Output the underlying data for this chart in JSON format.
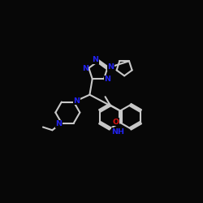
{
  "bg": "#070707",
  "bc": "#c8c8c8",
  "nc": "#2222ee",
  "oc": "#dd1111",
  "lw": 1.5,
  "fs": 6.8,
  "xlim": [
    -1.0,
    11.0
  ],
  "ylim": [
    2.5,
    11.5
  ]
}
